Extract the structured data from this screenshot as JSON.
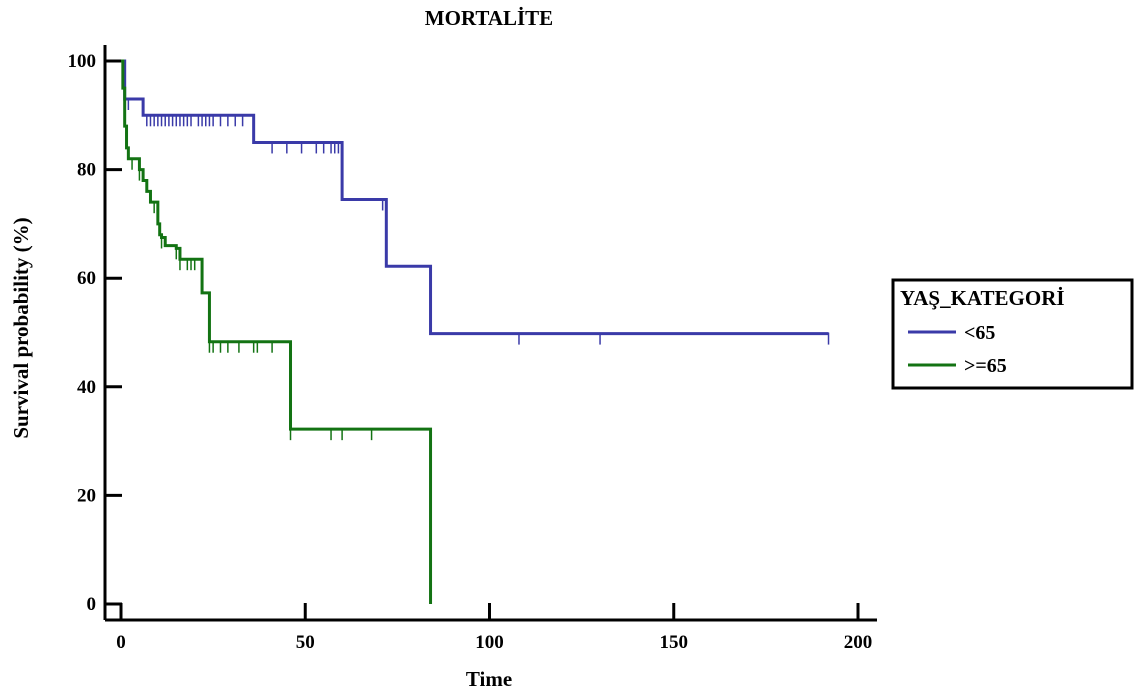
{
  "chart_data": {
    "type": "line",
    "title": "MORTALİTE",
    "xlabel": "Time",
    "ylabel": "Survival probability (%)",
    "xlim": [
      0,
      200
    ],
    "ylim": [
      0,
      100
    ],
    "xticks": [
      0,
      50,
      100,
      150,
      200
    ],
    "yticks": [
      0,
      20,
      40,
      60,
      80,
      100
    ],
    "grid": false,
    "legend": {
      "title": "YAŞ_KATEGORİ",
      "placement": "right"
    },
    "series": [
      {
        "name": "<65",
        "color": "#3a3aa8",
        "steps": [
          [
            0,
            100
          ],
          [
            1,
            93
          ],
          [
            6,
            90
          ],
          [
            36,
            85
          ],
          [
            60,
            74.5
          ],
          [
            72,
            62.2
          ],
          [
            84,
            49.8
          ],
          [
            192,
            49.8
          ]
        ],
        "censored": [
          1,
          2,
          7,
          8,
          9,
          10,
          11,
          12,
          13,
          14,
          15,
          16,
          17,
          18,
          19,
          21,
          22,
          23,
          24,
          25,
          27,
          29,
          31,
          33,
          41,
          45,
          49,
          53,
          55,
          57,
          58,
          59,
          71,
          108,
          130,
          192
        ]
      },
      {
        "name": ">=65",
        "color": "#137313",
        "steps": [
          [
            0,
            100
          ],
          [
            0.5,
            95
          ],
          [
            1,
            88
          ],
          [
            1.5,
            84
          ],
          [
            2,
            82
          ],
          [
            5,
            80
          ],
          [
            6,
            78
          ],
          [
            7,
            76
          ],
          [
            8,
            74
          ],
          [
            10,
            70
          ],
          [
            10.5,
            68
          ],
          [
            11,
            67.5
          ],
          [
            12,
            66
          ],
          [
            15,
            65.5
          ],
          [
            16,
            63.5
          ],
          [
            22,
            57.3
          ],
          [
            24,
            48.3
          ],
          [
            46,
            32.2
          ],
          [
            84,
            32.2
          ],
          [
            84,
            0
          ]
        ],
        "censored": [
          3,
          5,
          9,
          11,
          15,
          16,
          18,
          19,
          20,
          24,
          25,
          27,
          29,
          32,
          36,
          37,
          41,
          46,
          57,
          60,
          68
        ]
      }
    ]
  }
}
